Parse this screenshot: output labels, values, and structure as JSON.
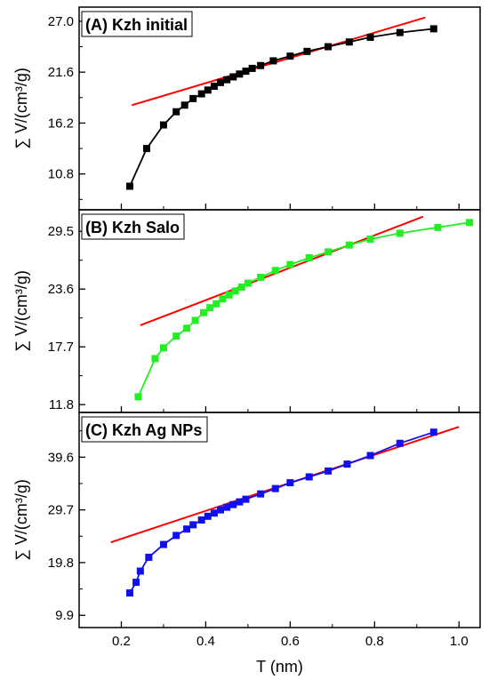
{
  "colors": {
    "fit_line": "#ff0000",
    "axis": "#000000",
    "series_A": "#000000",
    "series_B": "#22ee22",
    "series_C": "#1010ee"
  },
  "xaxis": {
    "label": "T (nm)",
    "xlim": [
      0.1,
      1.05
    ],
    "ticks": [
      0.2,
      0.4,
      0.6,
      0.8,
      1.0
    ],
    "tick_labels": [
      "0.2",
      "0.4",
      "0.6",
      "0.8",
      "1.0"
    ]
  },
  "chart_data": [
    {
      "type": "line",
      "title": "(A) Kzh initial",
      "xlabel": "T (nm)",
      "ylabel": "∑ V/(cm³/g)",
      "xlim": [
        0.1,
        1.05
      ],
      "ylim": [
        7.0,
        28.5
      ],
      "yticks": [
        10.8,
        16.2,
        21.6,
        27.0
      ],
      "ytick_labels": [
        "10.8",
        "16.2",
        "21.6",
        "27.0"
      ],
      "legend_position": "top-left",
      "series": [
        {
          "marker": "square",
          "color": "#000000",
          "x": [
            0.22,
            0.26,
            0.3,
            0.33,
            0.35,
            0.37,
            0.39,
            0.405,
            0.42,
            0.435,
            0.45,
            0.465,
            0.48,
            0.495,
            0.51,
            0.53,
            0.56,
            0.6,
            0.64,
            0.69,
            0.74,
            0.79,
            0.86,
            0.94
          ],
          "y": [
            9.5,
            13.5,
            16.0,
            17.4,
            18.1,
            18.8,
            19.3,
            19.7,
            20.1,
            20.5,
            20.8,
            21.1,
            21.4,
            21.7,
            22.0,
            22.3,
            22.8,
            23.3,
            23.8,
            24.3,
            24.8,
            25.3,
            25.8,
            26.2
          ]
        }
      ],
      "fit_line": {
        "x": [
          0.225,
          0.92
        ],
        "y": [
          18.1,
          27.4
        ]
      }
    },
    {
      "type": "line",
      "title": "(B) Kzh Salo",
      "xlabel": "T (nm)",
      "ylabel": "∑ V/(cm³/g)",
      "xlim": [
        0.1,
        1.05
      ],
      "ylim": [
        11.0,
        31.7
      ],
      "yticks": [
        11.8,
        17.7,
        23.6,
        29.5
      ],
      "ytick_labels": [
        "11.8",
        "17.7",
        "23.6",
        "29.5"
      ],
      "legend_position": "top-left",
      "series": [
        {
          "marker": "square",
          "color": "#22ee22",
          "x": [
            0.24,
            0.28,
            0.3,
            0.33,
            0.355,
            0.375,
            0.395,
            0.41,
            0.425,
            0.44,
            0.455,
            0.47,
            0.485,
            0.5,
            0.53,
            0.565,
            0.6,
            0.645,
            0.69,
            0.74,
            0.79,
            0.86,
            0.95,
            1.025
          ],
          "y": [
            12.6,
            16.5,
            17.6,
            18.8,
            19.6,
            20.4,
            21.2,
            21.7,
            22.1,
            22.6,
            23.0,
            23.4,
            23.8,
            24.2,
            24.8,
            25.5,
            26.1,
            26.8,
            27.4,
            28.1,
            28.7,
            29.3,
            29.9,
            30.4
          ]
        }
      ],
      "fit_line": {
        "x": [
          0.245,
          0.915
        ],
        "y": [
          19.9,
          31.0
        ]
      }
    },
    {
      "type": "line",
      "title": "(C) Kzh Ag NPs",
      "xlabel": "T (nm)",
      "ylabel": "∑ V/(cm³/g)",
      "xlim": [
        0.1,
        1.05
      ],
      "ylim": [
        7.6,
        48.0
      ],
      "yticks": [
        9.9,
        19.8,
        29.7,
        39.6
      ],
      "ytick_labels": [
        "9.9",
        "19.8",
        "29.7",
        "39.6"
      ],
      "legend_position": "top-left",
      "series": [
        {
          "marker": "square",
          "color": "#1010ee",
          "x": [
            0.22,
            0.235,
            0.245,
            0.265,
            0.3,
            0.33,
            0.355,
            0.37,
            0.39,
            0.405,
            0.42,
            0.435,
            0.45,
            0.465,
            0.48,
            0.495,
            0.53,
            0.565,
            0.6,
            0.645,
            0.69,
            0.735,
            0.79,
            0.86,
            0.94
          ],
          "y": [
            14.1,
            16.1,
            18.2,
            20.8,
            23.2,
            24.9,
            26.1,
            26.9,
            27.8,
            28.5,
            29.1,
            29.7,
            30.2,
            30.7,
            31.2,
            31.7,
            32.7,
            33.7,
            34.8,
            35.9,
            37.0,
            38.3,
            39.9,
            42.2,
            44.3
          ]
        }
      ],
      "fit_line": {
        "x": [
          0.175,
          1.0
        ],
        "y": [
          23.6,
          45.3
        ]
      }
    }
  ]
}
